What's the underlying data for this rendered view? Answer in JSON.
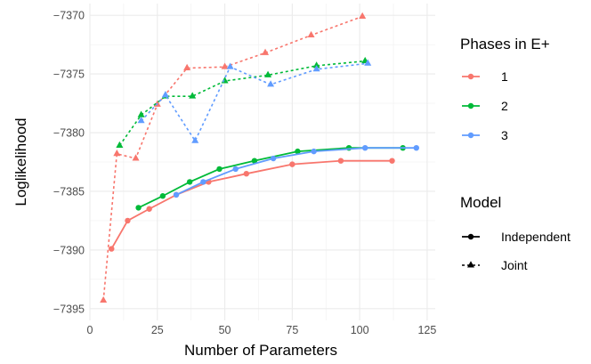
{
  "chart_data": {
    "type": "line",
    "title": "",
    "xlabel": "Number of Parameters",
    "ylabel": "Loglikelihood",
    "xlim": [
      0,
      128
    ],
    "ylim": [
      -7396,
      -7369
    ],
    "x_ticks": [
      0,
      25,
      50,
      75,
      100,
      125
    ],
    "y_ticks": [
      -7395,
      -7390,
      -7385,
      -7380,
      -7375,
      -7370
    ],
    "x_tick_labels": [
      "0",
      "25",
      "50",
      "75",
      "100",
      "125"
    ],
    "y_tick_labels": [
      "−7395",
      "−7390",
      "−7385",
      "−7380",
      "−7375",
      "−7370"
    ],
    "grid": true,
    "legend_position": "right",
    "legend": {
      "color_title": "Phases in E+",
      "phases": [
        {
          "label": "1",
          "color": "#F8766D"
        },
        {
          "label": "2",
          "color": "#00BA38"
        },
        {
          "label": "3",
          "color": "#619CFF"
        }
      ],
      "model_title": "Model",
      "models": [
        {
          "label": "Independent",
          "line": "solid",
          "marker": "circle"
        },
        {
          "label": "Joint",
          "line": "dashed",
          "marker": "triangle"
        }
      ]
    },
    "series": [
      {
        "phase": "1",
        "model": "Independent",
        "color": "#F8766D",
        "x": [
          8,
          14,
          22,
          32,
          44,
          58,
          75,
          93,
          112
        ],
        "y": [
          -7389.9,
          -7387.5,
          -7386.5,
          -7385.3,
          -7384.2,
          -7383.5,
          -7382.7,
          -7382.4,
          -7382.4
        ]
      },
      {
        "phase": "2",
        "model": "Independent",
        "color": "#00BA38",
        "x": [
          18,
          27,
          37,
          48,
          61,
          77,
          96,
          116
        ],
        "y": [
          -7386.4,
          -7385.4,
          -7384.2,
          -7383.1,
          -7382.4,
          -7381.6,
          -7381.3,
          -7381.3
        ]
      },
      {
        "phase": "3",
        "model": "Independent",
        "color": "#619CFF",
        "x": [
          32,
          42,
          54,
          68,
          83,
          102,
          121
        ],
        "y": [
          -7385.3,
          -7384.2,
          -7383.1,
          -7382.2,
          -7381.6,
          -7381.3,
          -7381.3
        ]
      },
      {
        "phase": "1",
        "model": "Joint",
        "color": "#F8766D",
        "x": [
          5,
          10,
          17,
          25,
          36,
          50,
          65,
          82,
          101
        ],
        "y": [
          -7394.3,
          -7381.8,
          -7382.2,
          -7377.6,
          -7374.5,
          -7374.4,
          -7373.2,
          -7371.7,
          -7370.1
        ]
      },
      {
        "phase": "2",
        "model": "Joint",
        "color": "#00BA38",
        "x": [
          11,
          19,
          28,
          38,
          50,
          66,
          84,
          102
        ],
        "y": [
          -7381.1,
          -7378.5,
          -7376.9,
          -7376.9,
          -7375.6,
          -7375.1,
          -7374.3,
          -7373.9
        ]
      },
      {
        "phase": "3",
        "model": "Joint",
        "color": "#619CFF",
        "x": [
          19,
          28,
          39,
          52,
          67,
          84,
          103
        ],
        "y": [
          -7379,
          -7376.8,
          -7380.7,
          -7374.4,
          -7375.9,
          -7374.6,
          -7374.1
        ]
      }
    ]
  }
}
